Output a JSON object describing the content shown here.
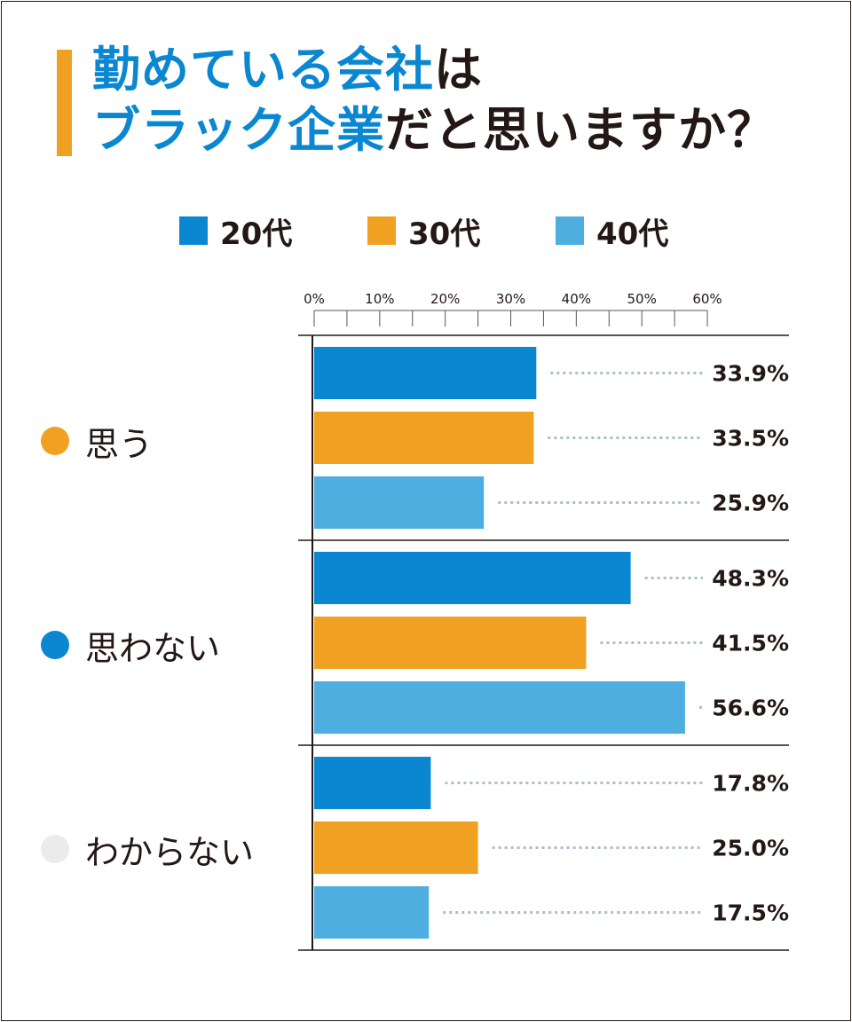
{
  "title": {
    "line1_accent": "勤めている会社",
    "line1_plain": "は",
    "line2_accent": "ブラック企業",
    "line2_plain": "だと思いますか？"
  },
  "legend": [
    {
      "label": "20代",
      "color": "#0a87d0"
    },
    {
      "label": "30代",
      "color": "#f0a122"
    },
    {
      "label": "40代",
      "color": "#4eaedf"
    }
  ],
  "categories": [
    {
      "label": "思う",
      "dot_color": "#f0a122"
    },
    {
      "label": "思わない",
      "dot_color": "#0a87d0"
    },
    {
      "label": "わからない",
      "dot_color": "#ebebeb"
    }
  ],
  "chart_data": {
    "type": "bar",
    "orientation": "horizontal",
    "title": "勤めている会社はブラック企業だと思いますか？",
    "categories": [
      "思う",
      "思わない",
      "わからない"
    ],
    "series": [
      {
        "name": "20代",
        "values": [
          33.9,
          48.3,
          17.8
        ]
      },
      {
        "name": "30代",
        "values": [
          33.5,
          41.5,
          25.0
        ]
      },
      {
        "name": "40代",
        "values": [
          25.9,
          56.6,
          17.5
        ]
      }
    ],
    "value_labels": [
      [
        "33.9%",
        "33.5%",
        "25.9%"
      ],
      [
        "48.3%",
        "41.5%",
        "56.6%"
      ],
      [
        "17.8%",
        "25.0%",
        "17.5%"
      ]
    ],
    "x_ticks": [
      "0%",
      "10%",
      "20%",
      "30%",
      "40%",
      "50%",
      "60%"
    ],
    "xlim": [
      0,
      60
    ],
    "xlabel": "",
    "ylabel": "",
    "legend_position": "top"
  }
}
